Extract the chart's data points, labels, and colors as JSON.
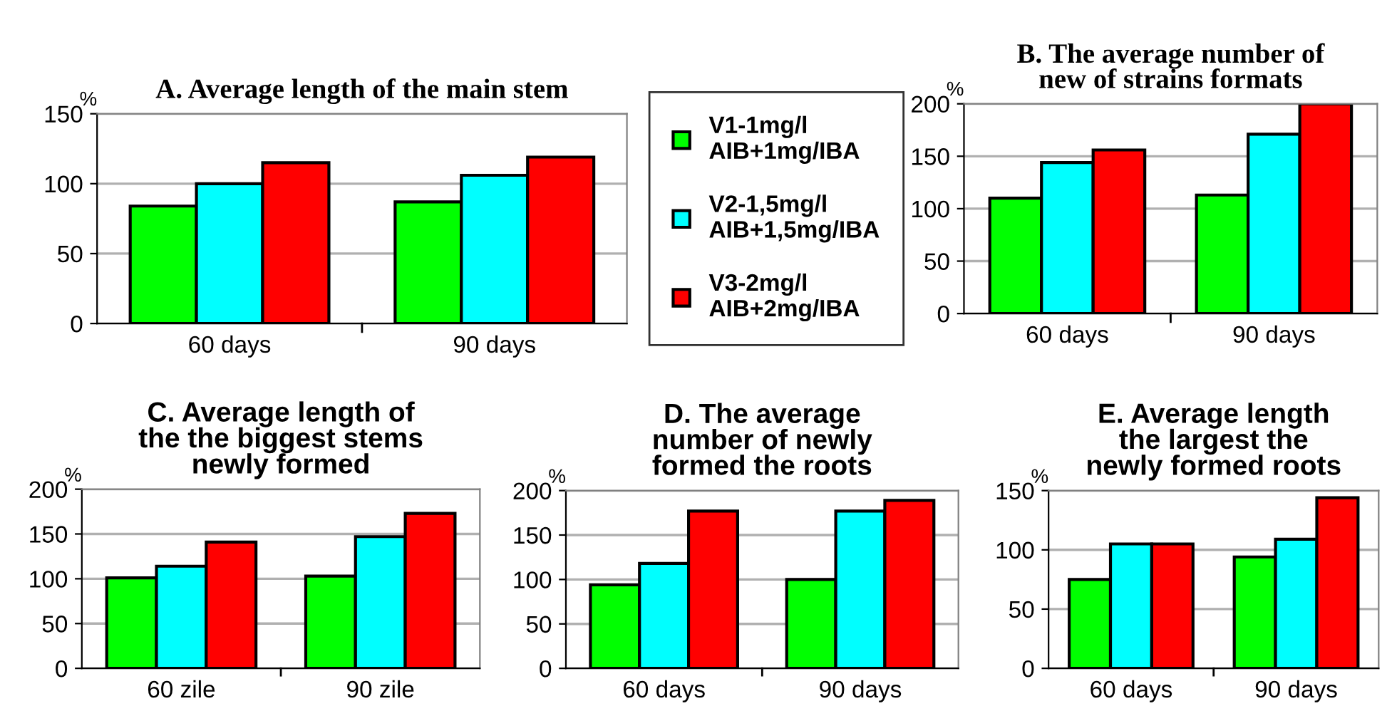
{
  "chart_data": [
    {
      "type": "bar",
      "title": "A. Average length of the main stem",
      "ylabel": "%",
      "categories": [
        "60 days",
        "90 days"
      ],
      "ylim": [
        0,
        150
      ],
      "yticks": [
        0,
        50,
        100,
        150
      ],
      "grid": "y",
      "legend": "right",
      "series": [
        {
          "name": "V1-1mg/l\nAIB+1mg/IBA",
          "color": "#00ff00",
          "values": [
            84,
            87
          ]
        },
        {
          "name": "V2-1,5mg/l\nAIB+1,5mg/IBA",
          "color": "#00ffff",
          "values": [
            100,
            106
          ]
        },
        {
          "name": "V3-2mg/l\nAIB+2mg/IBA",
          "color": "#ff0000",
          "values": [
            115,
            119
          ]
        }
      ]
    },
    {
      "type": "bar",
      "title": "B. The average number of\nnew of strains formats",
      "ylabel": "%",
      "categories": [
        "60 days",
        "90 days"
      ],
      "ylim": [
        0,
        200
      ],
      "yticks": [
        0,
        50,
        100,
        150,
        200
      ],
      "grid": "y",
      "series": [
        {
          "color": "#00ff00",
          "values": [
            110,
            113
          ]
        },
        {
          "color": "#00ffff",
          "values": [
            144,
            171
          ]
        },
        {
          "color": "#ff0000",
          "values": [
            156,
            200
          ]
        }
      ]
    },
    {
      "type": "bar",
      "title": "C. Average length of\nthe the biggest stems\nnewly formed",
      "ylabel": "%",
      "categories": [
        "60 zile",
        "90 zile"
      ],
      "ylim": [
        0,
        200
      ],
      "yticks": [
        0,
        50,
        100,
        150,
        200
      ],
      "grid": "y",
      "series": [
        {
          "color": "#00ff00",
          "values": [
            101,
            103
          ]
        },
        {
          "color": "#00ffff",
          "values": [
            114,
            147
          ]
        },
        {
          "color": "#ff0000",
          "values": [
            141,
            173
          ]
        }
      ]
    },
    {
      "type": "bar",
      "title": "D. The average\nnumber of newly\nformed the roots",
      "ylabel": "%",
      "categories": [
        "60 days",
        "90 days"
      ],
      "ylim": [
        0,
        200
      ],
      "yticks": [
        0,
        50,
        100,
        150,
        200
      ],
      "grid": "y",
      "series": [
        {
          "color": "#00ff00",
          "values": [
            94,
            100
          ]
        },
        {
          "color": "#00ffff",
          "values": [
            118,
            177
          ]
        },
        {
          "color": "#ff0000",
          "values": [
            177,
            189
          ]
        }
      ]
    },
    {
      "type": "bar",
      "title": "E. Average length\nthe largest the\nnewly formed roots",
      "ylabel": "%",
      "categories": [
        "60 days",
        "90 days"
      ],
      "ylim": [
        0,
        150
      ],
      "yticks": [
        0,
        50,
        100,
        150
      ],
      "grid": "y",
      "series": [
        {
          "color": "#00ff00",
          "values": [
            75,
            94
          ]
        },
        {
          "color": "#00ffff",
          "values": [
            105,
            109
          ]
        },
        {
          "color": "#ff0000",
          "values": [
            105,
            144
          ]
        }
      ]
    }
  ]
}
